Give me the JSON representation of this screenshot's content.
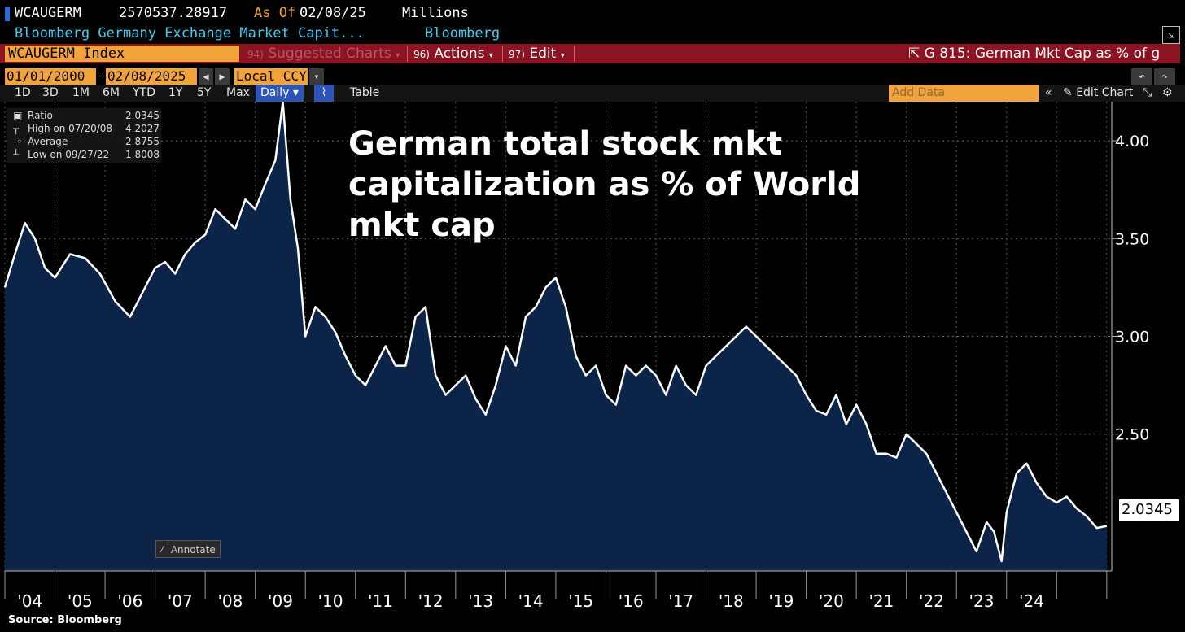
{
  "header": {
    "ticker": "WCAUGERM",
    "last_value": "2570537.28917",
    "as_of_label": "As Of",
    "as_of_date": "02/08/25",
    "units": "Millions",
    "description": "Bloomberg Germany Exchange Market Capit...",
    "source_name": "Bloomberg"
  },
  "menu": {
    "security": "WCAUGERM Index",
    "suggested_num": "94)",
    "suggested": "Suggested Charts",
    "actions_num": "96)",
    "actions": "Actions",
    "edit_num": "97)",
    "edit": "Edit",
    "chart_id": "G 815: German Mkt Cap as % of g"
  },
  "controls": {
    "start_date": "01/01/2000",
    "end_date": "02/08/2025",
    "currency": "Local CCY",
    "periods": [
      "1D",
      "3D",
      "1M",
      "6M",
      "YTD",
      "1Y",
      "5Y",
      "Max"
    ],
    "frequency": "Daily",
    "table_label": "Table",
    "add_data_placeholder": "Add Data",
    "edit_chart": "Edit Chart"
  },
  "legend": {
    "ratio_label": "Ratio",
    "ratio_value": "2.0345",
    "high_label": "High on 07/20/08",
    "high_value": "4.2027",
    "avg_label": "Average",
    "avg_value": "2.8755",
    "low_label": "Low on 09/27/22",
    "low_value": "1.8008"
  },
  "annotate_label": "Annotate",
  "source_note": "Source: Bloomberg",
  "colors": {
    "line": "#ffffff",
    "area": "#0b2447",
    "accent": "#f2a33a",
    "menu_bar": "#8c1422"
  },
  "chart_data": {
    "type": "area",
    "title": "German total stock mkt capitalization as % of World mkt cap",
    "title_lines": [
      "German total stock mkt",
      "capitalization as % of World",
      "mkt cap"
    ],
    "xlabel": "",
    "ylabel": "",
    "last_value_label": "2.0345",
    "x_tick_labels": [
      "'04",
      "'05",
      "'06",
      "'07",
      "'08",
      "'09",
      "'10",
      "'11",
      "'12",
      "'13",
      "'14",
      "'15",
      "'16",
      "'17",
      "'18",
      "'19",
      "'20",
      "'21",
      "'22",
      "'23",
      "'24"
    ],
    "x_range": [
      2003.0,
      2025.1
    ],
    "y_ticks": [
      2.5,
      3.0,
      3.5,
      4.0
    ],
    "y_tick_labels": [
      "2.50",
      "3.00",
      "3.50",
      "4.00"
    ],
    "ylim": [
      1.8,
      4.2
    ],
    "grid": true,
    "series": [
      {
        "x": [
          2003.0,
          2003.2,
          2003.4,
          2003.6,
          2003.8,
          2004.0,
          2004.3,
          2004.6,
          2004.9,
          2005.2,
          2005.5,
          2005.8,
          2006.0,
          2006.2,
          2006.4,
          2006.6,
          2006.8,
          2007.0,
          2007.2,
          2007.4,
          2007.6,
          2007.8,
          2008.0,
          2008.2,
          2008.4,
          2008.55,
          2008.7,
          2008.85,
          2009.0,
          2009.2,
          2009.4,
          2009.6,
          2009.8,
          2010.0,
          2010.2,
          2010.4,
          2010.6,
          2010.8,
          2011.0,
          2011.2,
          2011.4,
          2011.6,
          2011.8,
          2012.0,
          2012.2,
          2012.4,
          2012.6,
          2012.8,
          2013.0,
          2013.2,
          2013.4,
          2013.6,
          2013.8,
          2014.0,
          2014.2,
          2014.4,
          2014.6,
          2014.8,
          2015.0,
          2015.2,
          2015.4,
          2015.6,
          2015.8,
          2016.0,
          2016.2,
          2016.4,
          2016.6,
          2016.8,
          2017.0,
          2017.2,
          2017.4,
          2017.6,
          2017.8,
          2018.0,
          2018.2,
          2018.4,
          2018.6,
          2018.8,
          2019.0,
          2019.2,
          2019.4,
          2019.6,
          2019.8,
          2020.0,
          2020.2,
          2020.4,
          2020.6,
          2020.8,
          2021.0,
          2021.2,
          2021.4,
          2021.6,
          2021.8,
          2022.0,
          2022.2,
          2022.4,
          2022.6,
          2022.75,
          2022.9,
          2023.0,
          2023.2,
          2023.4,
          2023.6,
          2023.8,
          2024.0,
          2024.2,
          2024.4,
          2024.6,
          2024.8,
          2025.0
        ],
        "values": [
          3.25,
          3.42,
          3.58,
          3.5,
          3.35,
          3.3,
          3.42,
          3.4,
          3.32,
          3.18,
          3.1,
          3.25,
          3.35,
          3.38,
          3.32,
          3.42,
          3.48,
          3.52,
          3.65,
          3.6,
          3.55,
          3.7,
          3.65,
          3.78,
          3.9,
          4.2,
          3.7,
          3.45,
          3.0,
          3.15,
          3.1,
          3.02,
          2.9,
          2.8,
          2.75,
          2.85,
          2.95,
          2.85,
          2.85,
          3.1,
          3.15,
          2.8,
          2.7,
          2.75,
          2.8,
          2.68,
          2.6,
          2.75,
          2.95,
          2.85,
          3.1,
          3.15,
          3.25,
          3.3,
          3.15,
          2.9,
          2.8,
          2.85,
          2.7,
          2.65,
          2.85,
          2.8,
          2.85,
          2.8,
          2.7,
          2.85,
          2.75,
          2.7,
          2.85,
          2.9,
          2.95,
          3.0,
          3.05,
          3.0,
          2.95,
          2.9,
          2.85,
          2.8,
          2.7,
          2.62,
          2.6,
          2.7,
          2.55,
          2.65,
          2.55,
          2.4,
          2.4,
          2.38,
          2.5,
          2.45,
          2.4,
          2.3,
          2.2,
          2.1,
          2.0,
          1.9,
          2.05,
          2.0,
          1.85,
          2.1,
          2.3,
          2.35,
          2.25,
          2.18,
          2.15,
          2.18,
          2.12,
          2.08,
          2.02,
          2.03
        ]
      }
    ]
  }
}
